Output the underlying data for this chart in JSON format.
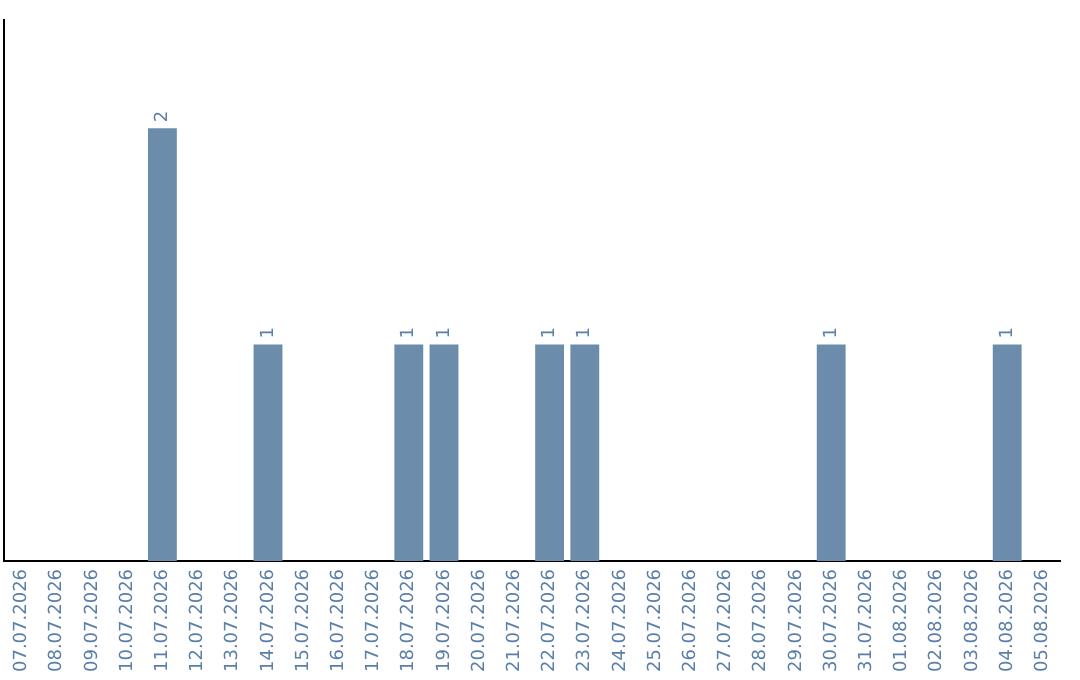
{
  "chart_data": {
    "type": "bar",
    "categories": [
      "07.07.2026",
      "08.07.2026",
      "09.07.2026",
      "10.07.2026",
      "11.07.2026",
      "12.07.2026",
      "13.07.2026",
      "14.07.2026",
      "15.07.2026",
      "16.07.2026",
      "17.07.2026",
      "18.07.2026",
      "19.07.2026",
      "20.07.2026",
      "21.07.2026",
      "22.07.2026",
      "23.07.2026",
      "24.07.2026",
      "25.07.2026",
      "26.07.2026",
      "27.07.2026",
      "28.07.2026",
      "29.07.2026",
      "30.07.2026",
      "31.07.2026",
      "01.08.2026",
      "02.08.2026",
      "03.08.2026",
      "04.08.2026",
      "05.08.2026"
    ],
    "values": [
      0,
      0,
      0,
      0,
      2,
      0,
      0,
      1,
      0,
      0,
      0,
      1,
      1,
      0,
      0,
      1,
      1,
      0,
      0,
      0,
      0,
      0,
      0,
      1,
      0,
      0,
      0,
      0,
      1,
      0
    ],
    "value_labels": [
      null,
      null,
      null,
      null,
      "2",
      null,
      null,
      "1",
      null,
      null,
      null,
      "1",
      "1",
      null,
      null,
      "1",
      "1",
      null,
      null,
      null,
      null,
      null,
      null,
      "1",
      null,
      null,
      null,
      null,
      "1",
      null
    ],
    "color": "#6b8caa",
    "tick_labels": "x",
    "grid": false,
    "legend": false
  }
}
